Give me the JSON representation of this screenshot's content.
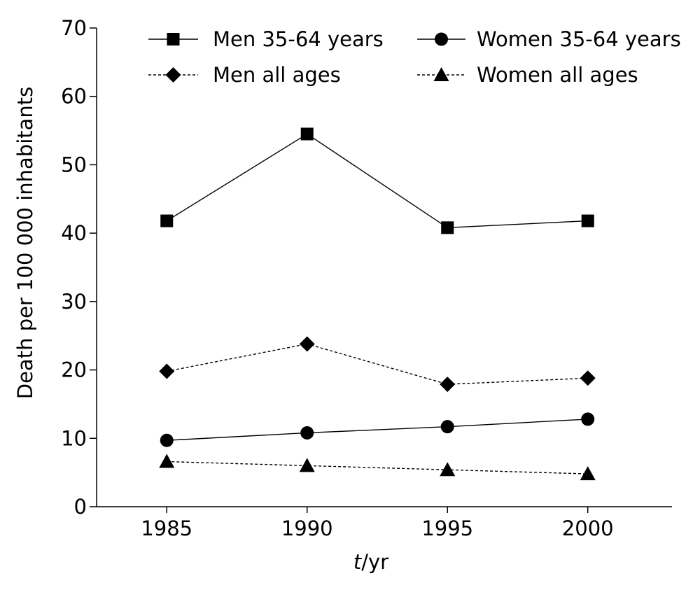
{
  "chart_data": {
    "type": "line",
    "title": "",
    "xlabel_italic": "t",
    "xlabel_rest": "/yr",
    "ylabel": "Death per 100 000 inhabitants",
    "categories": [
      "1985",
      "1990",
      "1995",
      "2000"
    ],
    "x": [
      1985,
      1990,
      1995,
      2000
    ],
    "xlim": [
      1982.5,
      2003
    ],
    "ylim": [
      0,
      70
    ],
    "yticks": [
      0,
      10,
      20,
      30,
      40,
      50,
      60,
      70
    ],
    "grid": false,
    "legend_placement": "top",
    "series": [
      {
        "name": "Men 35-64 years",
        "values": [
          41.8,
          54.5,
          40.8,
          41.8
        ],
        "marker": "square",
        "line": "solid"
      },
      {
        "name": "Women 35-64 years",
        "values": [
          9.7,
          10.8,
          11.7,
          12.8
        ],
        "marker": "circle",
        "line": "solid"
      },
      {
        "name": "Men all ages",
        "values": [
          19.8,
          23.8,
          17.9,
          18.8
        ],
        "marker": "diamond",
        "line": "dashed"
      },
      {
        "name": "Women all ages",
        "values": [
          6.6,
          6.0,
          5.4,
          4.8
        ],
        "marker": "triangle",
        "line": "dashed"
      }
    ]
  }
}
